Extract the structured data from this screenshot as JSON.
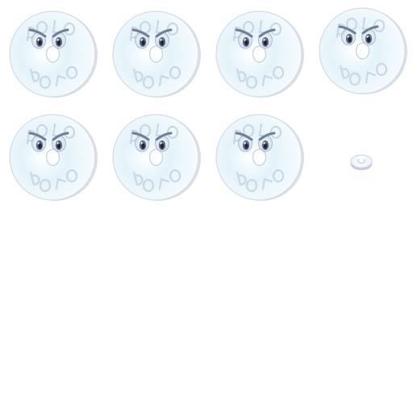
{
  "sprite_sheet": {
    "frame_count": 8,
    "sprite": "polo-mint-face",
    "embossed_text": "POLO",
    "colors": {
      "background": "#ffffff",
      "mint_core": "#eaf6fb",
      "mint_glow": "#d3ecf6",
      "mint_rim": "#9aa6c4",
      "mint_shadow": "#b9c2d8",
      "eye_white": "#f2f6fa",
      "eye_iris": "#5c6f8c",
      "pupil": "#1e2733",
      "brow": "#6f7f99",
      "embossed_text": "#c9d7e6"
    },
    "frames": [
      {
        "name": "frame-1",
        "expression": "angry-face"
      },
      {
        "name": "frame-2",
        "expression": "angry-face"
      },
      {
        "name": "frame-3",
        "expression": "angry-face"
      },
      {
        "name": "frame-4",
        "expression": "angry-face"
      },
      {
        "name": "frame-5",
        "expression": "angry-face"
      },
      {
        "name": "frame-6",
        "expression": "angry-face"
      },
      {
        "name": "frame-7",
        "expression": "angry-face"
      },
      {
        "name": "frame-8",
        "expression": "shrunk-mint"
      }
    ]
  }
}
